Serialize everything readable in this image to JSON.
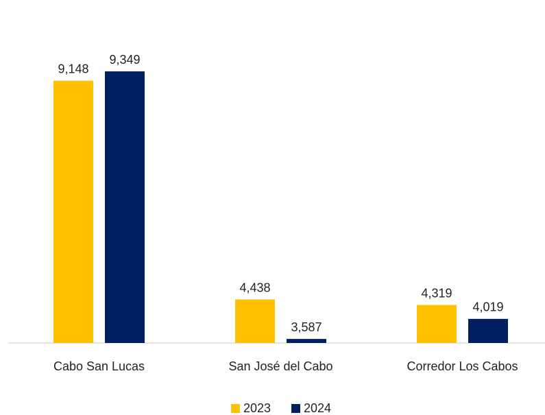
{
  "chart_data": {
    "type": "bar",
    "categories": [
      "Cabo San Lucas",
      "San José del Cabo",
      "Corredor Los Cabos"
    ],
    "series": [
      {
        "name": "2023",
        "color": "#ffc000",
        "values": [
          9148,
          4438,
          4319
        ],
        "value_labels": [
          "9,148",
          "4,438",
          "4,319"
        ]
      },
      {
        "name": "2024",
        "color": "#002060",
        "values": [
          9349,
          3587,
          4019
        ],
        "value_labels": [
          "9,349",
          "3,587",
          "4,019"
        ]
      }
    ],
    "ylim": [
      3500,
      10000
    ],
    "legend": "bottom"
  }
}
